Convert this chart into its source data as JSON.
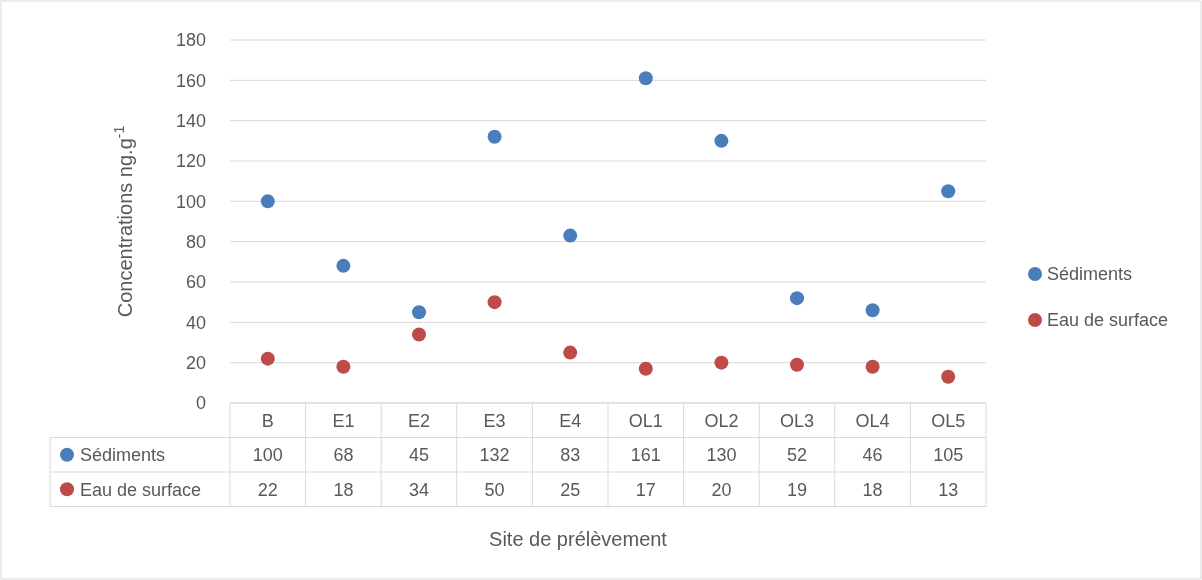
{
  "chart_data": {
    "type": "scatter",
    "xlabel": "Site de prélèvement",
    "ylabel": "Concentrations ng.g$^{-1}$",
    "categories": [
      "B",
      "E1",
      "E2",
      "E3",
      "E4",
      "OL1",
      "OL2",
      "OL3",
      "OL4",
      "OL5"
    ],
    "series": [
      {
        "name": "Sédiments",
        "color": "#4a7ebb",
        "values": [
          100,
          68,
          45,
          132,
          83,
          161,
          130,
          52,
          46,
          105
        ]
      },
      {
        "name": "Eau de surface",
        "color": "#be4b48",
        "values": [
          22,
          18,
          34,
          50,
          25,
          17,
          20,
          19,
          18,
          13
        ]
      }
    ],
    "ylim": [
      0,
      180
    ],
    "yticks": [
      0,
      20,
      40,
      60,
      80,
      100,
      120,
      140,
      160,
      180
    ],
    "grid": "y",
    "legend": "right",
    "marker": "circle",
    "data_labels": true
  }
}
